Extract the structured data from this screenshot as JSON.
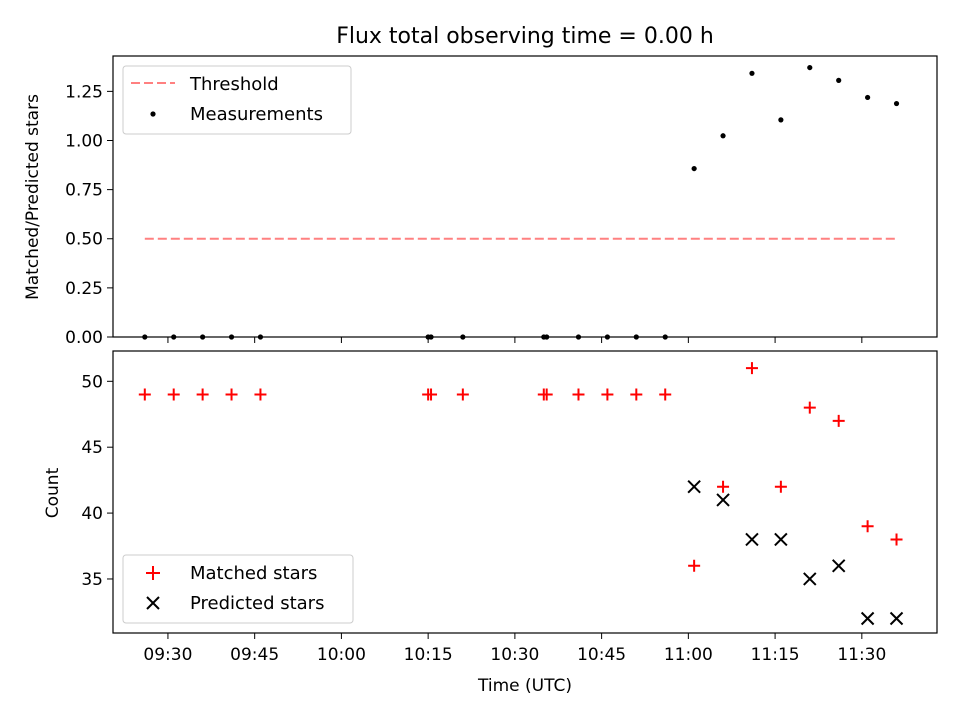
{
  "chart_data": [
    {
      "type": "scatter",
      "title": "Flux total observing time = 0.00 h",
      "xlabel": "",
      "ylabel": "Matched/Predicted stars",
      "xlim": [
        "09:20:30",
        "11:43:00"
      ],
      "ylim": [
        0,
        1.43
      ],
      "yticks": [
        0.0,
        0.25,
        0.5,
        0.75,
        1.0,
        1.25
      ],
      "ytick_labels": [
        "0.00",
        "0.25",
        "0.50",
        "0.75",
        "1.00",
        "1.25"
      ],
      "grid": false,
      "legend_position": "upper-left",
      "series": [
        {
          "name": "Threshold",
          "kind": "line",
          "color": "#ff8080",
          "style": "dashed",
          "x": [
            "09:26:00",
            "11:36:00"
          ],
          "y": [
            0.5,
            0.5
          ]
        },
        {
          "name": "Measurements",
          "kind": "scatter",
          "color": "#000000",
          "marker": "dot",
          "x": [
            "09:26:00",
            "09:31:00",
            "09:36:00",
            "09:41:00",
            "09:46:00",
            "10:15:00",
            "10:15:30",
            "10:21:00",
            "10:35:00",
            "10:35:30",
            "10:41:00",
            "10:46:00",
            "10:51:00",
            "10:56:00",
            "11:01:00",
            "11:06:00",
            "11:11:00",
            "11:16:00",
            "11:21:00",
            "11:26:00",
            "11:31:00",
            "11:36:00"
          ],
          "y": [
            0,
            0,
            0,
            0,
            0,
            0,
            0,
            0,
            0,
            0,
            0,
            0,
            0,
            0,
            0.857,
            1.024,
            1.342,
            1.105,
            1.371,
            1.306,
            1.219,
            1.188
          ]
        }
      ]
    },
    {
      "type": "scatter",
      "title": "",
      "xlabel": "Time (UTC)",
      "ylabel": "Count",
      "xlim": [
        "09:20:30",
        "11:43:00"
      ],
      "ylim": [
        30.9,
        52.3
      ],
      "xticks": [
        "09:30",
        "09:45",
        "10:00",
        "10:15",
        "10:30",
        "10:45",
        "11:00",
        "11:15",
        "11:30"
      ],
      "yticks": [
        35,
        40,
        45,
        50
      ],
      "ytick_labels": [
        "35",
        "40",
        "45",
        "50"
      ],
      "grid": false,
      "legend_position": "lower-left",
      "series": [
        {
          "name": "Matched stars",
          "kind": "scatter",
          "color": "#ff0000",
          "marker": "plus",
          "x": [
            "09:26:00",
            "09:31:00",
            "09:36:00",
            "09:41:00",
            "09:46:00",
            "10:15:00",
            "10:15:30",
            "10:21:00",
            "10:35:00",
            "10:35:30",
            "10:41:00",
            "10:46:00",
            "10:51:00",
            "10:56:00",
            "11:01:00",
            "11:06:00",
            "11:11:00",
            "11:16:00",
            "11:21:00",
            "11:26:00",
            "11:31:00",
            "11:36:00"
          ],
          "y": [
            49,
            49,
            49,
            49,
            49,
            49,
            49,
            49,
            49,
            49,
            49,
            49,
            49,
            49,
            36,
            42,
            51,
            42,
            48,
            47,
            39,
            38
          ]
        },
        {
          "name": "Predicted stars",
          "kind": "scatter",
          "color": "#000000",
          "marker": "x",
          "x": [
            "11:01:00",
            "11:06:00",
            "11:11:00",
            "11:16:00",
            "11:21:00",
            "11:26:00",
            "11:31:00",
            "11:36:00"
          ],
          "y": [
            42,
            41,
            38,
            38,
            35,
            36,
            32,
            32
          ]
        }
      ]
    }
  ]
}
